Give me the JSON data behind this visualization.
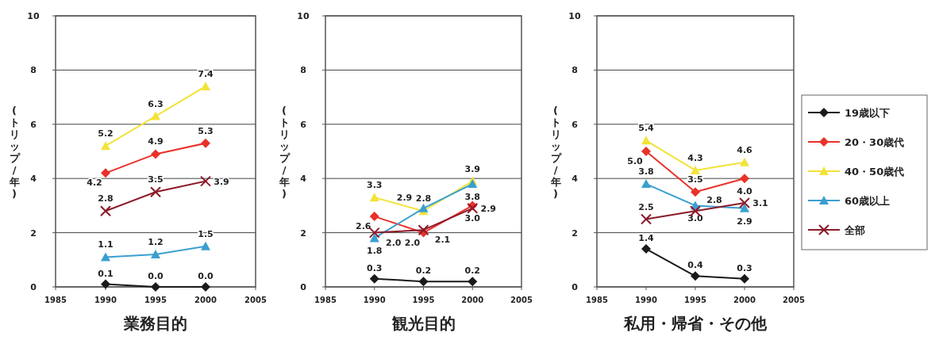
{
  "chart_data": [
    {
      "type": "line",
      "title": "業務目的",
      "ylabel": "(トリップ/年)",
      "x": [
        1990,
        1995,
        2000
      ],
      "xlim": [
        1985,
        2005
      ],
      "xticks": [
        1985,
        1990,
        1995,
        2000,
        2005
      ],
      "ylim": [
        0,
        10
      ],
      "yticks": [
        0,
        2,
        4,
        6,
        8,
        10
      ],
      "grid": "y",
      "legend": false,
      "series": [
        {
          "color": "#1a1a1a",
          "marker": "diamond",
          "values": [
            0.1,
            0.0,
            0.0
          ],
          "value_labels": [
            "0.1",
            "0.0",
            "0.0"
          ]
        },
        {
          "color": "#e8322a",
          "marker": "diamond",
          "values": [
            4.2,
            4.9,
            5.3
          ],
          "value_labels": [
            "4.2",
            "4.9",
            "5.3"
          ]
        },
        {
          "color": "#f2e33a",
          "marker": "triangle",
          "values": [
            5.2,
            6.3,
            7.4
          ],
          "value_labels": [
            "5.2",
            "6.3",
            "7.4"
          ]
        },
        {
          "color": "#3a9fd0",
          "marker": "triangle",
          "values": [
            1.1,
            1.2,
            1.5
          ],
          "value_labels": [
            "1.1",
            "1.2",
            "1.5"
          ]
        },
        {
          "color": "#8b1a2a",
          "marker": "cross",
          "values": [
            2.8,
            3.5,
            3.9
          ],
          "value_labels": [
            "2.8",
            "3.5",
            "3.9"
          ]
        }
      ]
    },
    {
      "type": "line",
      "title": "観光目的",
      "ylabel": "(トリップ/年)",
      "x": [
        1990,
        1995,
        2000
      ],
      "xlim": [
        1985,
        2005
      ],
      "xticks": [
        1985,
        1990,
        1995,
        2000,
        2005
      ],
      "ylim": [
        0,
        10
      ],
      "yticks": [
        0,
        2,
        4,
        6,
        8,
        10
      ],
      "grid": "y",
      "legend": false,
      "series": [
        {
          "color": "#1a1a1a",
          "marker": "diamond",
          "values": [
            0.3,
            0.2,
            0.2
          ],
          "value_labels": [
            "0.3",
            "0.2",
            "0.2"
          ]
        },
        {
          "color": "#e8322a",
          "marker": "diamond",
          "values": [
            2.6,
            2.0,
            3.0
          ],
          "value_labels": [
            "2.6",
            "2.0",
            "3.0"
          ]
        },
        {
          "color": "#f2e33a",
          "marker": "triangle",
          "values": [
            3.3,
            2.8,
            3.9
          ],
          "value_labels": [
            "3.3",
            "2.8",
            "3.9"
          ]
        },
        {
          "color": "#3a9fd0",
          "marker": "triangle",
          "values": [
            1.8,
            2.9,
            3.8
          ],
          "value_labels": [
            "1.8",
            "2.9",
            "3.8"
          ]
        },
        {
          "color": "#8b1a2a",
          "marker": "cross",
          "values": [
            2.0,
            2.1,
            2.9
          ],
          "value_labels": [
            "2.0",
            "2.1",
            "2.9"
          ]
        }
      ]
    },
    {
      "type": "line",
      "title": "私用・帰省・その他",
      "ylabel": "(トリップ/年)",
      "x": [
        1990,
        1995,
        2000
      ],
      "xlim": [
        1985,
        2005
      ],
      "xticks": [
        1985,
        1990,
        1995,
        2000,
        2005
      ],
      "ylim": [
        0,
        10
      ],
      "yticks": [
        0,
        2,
        4,
        6,
        8,
        10
      ],
      "grid": "y",
      "legend": "right",
      "series": [
        {
          "name": "19歳以下",
          "color": "#1a1a1a",
          "marker": "diamond",
          "values": [
            1.4,
            0.4,
            0.3
          ],
          "value_labels": [
            "1.4",
            "0.4",
            "0.3"
          ]
        },
        {
          "name": "20・30歳代",
          "color": "#e8322a",
          "marker": "diamond",
          "values": [
            5.0,
            3.5,
            4.0
          ],
          "value_labels": [
            "5.0",
            "3.5",
            "4.0"
          ]
        },
        {
          "name": "40・50歳代",
          "color": "#f2e33a",
          "marker": "triangle",
          "values": [
            5.4,
            4.3,
            4.6
          ],
          "value_labels": [
            "5.4",
            "4.3",
            "4.6"
          ]
        },
        {
          "name": "60歳以上",
          "color": "#3a9fd0",
          "marker": "triangle",
          "values": [
            3.8,
            3.0,
            2.9
          ],
          "value_labels": [
            "3.8",
            "3.0",
            "2.9"
          ]
        },
        {
          "name": "全部",
          "color": "#8b1a2a",
          "marker": "cross",
          "values": [
            2.5,
            2.8,
            3.1
          ],
          "value_labels": [
            "2.5",
            "2.8",
            "3.1"
          ]
        }
      ]
    }
  ]
}
